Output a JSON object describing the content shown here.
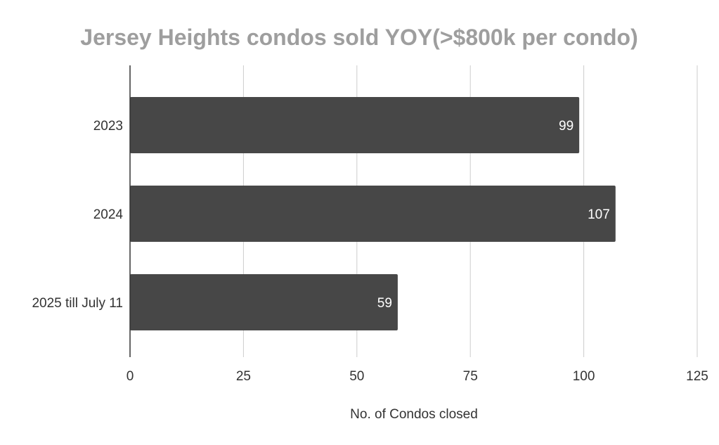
{
  "chart_data": {
    "type": "bar",
    "orientation": "horizontal",
    "title": "Jersey Heights condos sold YOY(>$800k per condo)",
    "xlabel": "No. of Condos closed",
    "ylabel": "",
    "categories": [
      "2023",
      "2024",
      "2025 till July 11"
    ],
    "values": [
      99,
      107,
      59
    ],
    "xlim": [
      0,
      125
    ],
    "x_ticks": [
      0,
      25,
      50,
      75,
      100,
      125
    ],
    "x_tick_labels": [
      "0",
      "25",
      "50",
      "75",
      "100",
      "125"
    ],
    "data_labels": [
      "99",
      "107",
      "59"
    ],
    "grid": true,
    "legend": "none",
    "colors": {
      "bar": "#474747",
      "title": "#9e9e9e",
      "gridline": "#cccccc",
      "axis": "#333333",
      "data_label": "#ffffff",
      "text": "#333333"
    }
  }
}
